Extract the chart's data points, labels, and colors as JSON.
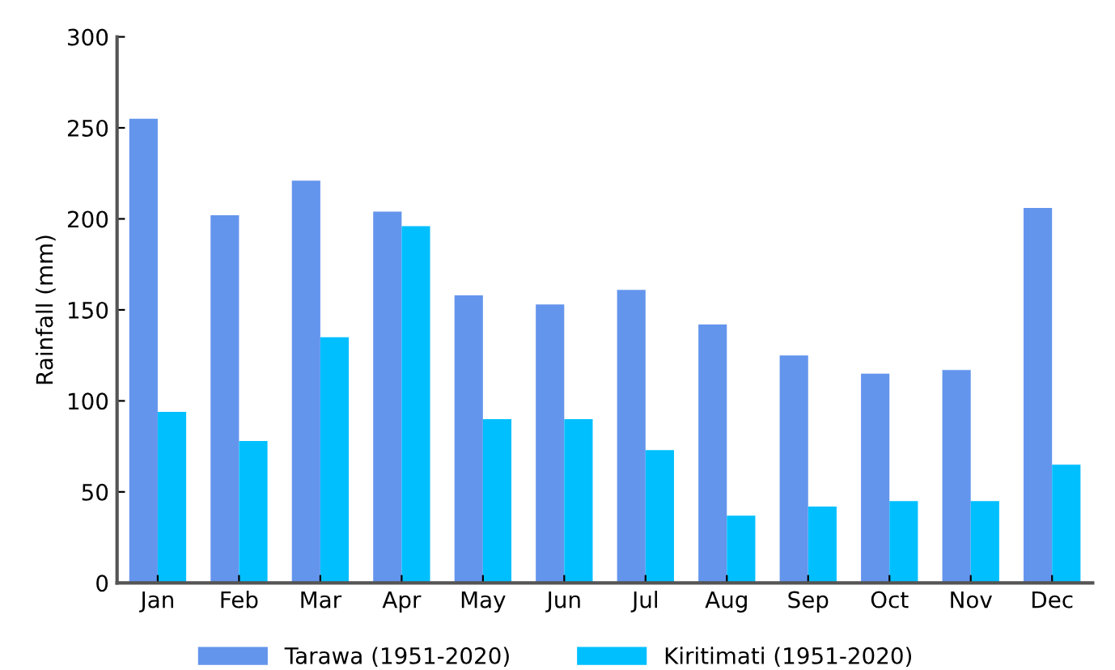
{
  "chart_data": {
    "type": "bar",
    "ylabel": "Rainfall (mm)",
    "categories": [
      "Jan",
      "Feb",
      "Mar",
      "Apr",
      "May",
      "Jun",
      "Jul",
      "Aug",
      "Sep",
      "Oct",
      "Nov",
      "Dec"
    ],
    "series": [
      {
        "name": "Tarawa (1951-2020)",
        "color": "#6495ed",
        "values": [
          255,
          202,
          221,
          204,
          158,
          153,
          161,
          142,
          125,
          115,
          117,
          206
        ]
      },
      {
        "name": "Kiritimati (1951-2020)",
        "color": "#00bfff",
        "values": [
          94,
          78,
          135,
          196,
          90,
          90,
          73,
          37,
          42,
          45,
          45,
          65
        ]
      }
    ],
    "ylim": [
      0,
      300
    ],
    "yticks": [
      0,
      50,
      100,
      150,
      200,
      250,
      300
    ],
    "grid": false,
    "legend": "bottom"
  }
}
